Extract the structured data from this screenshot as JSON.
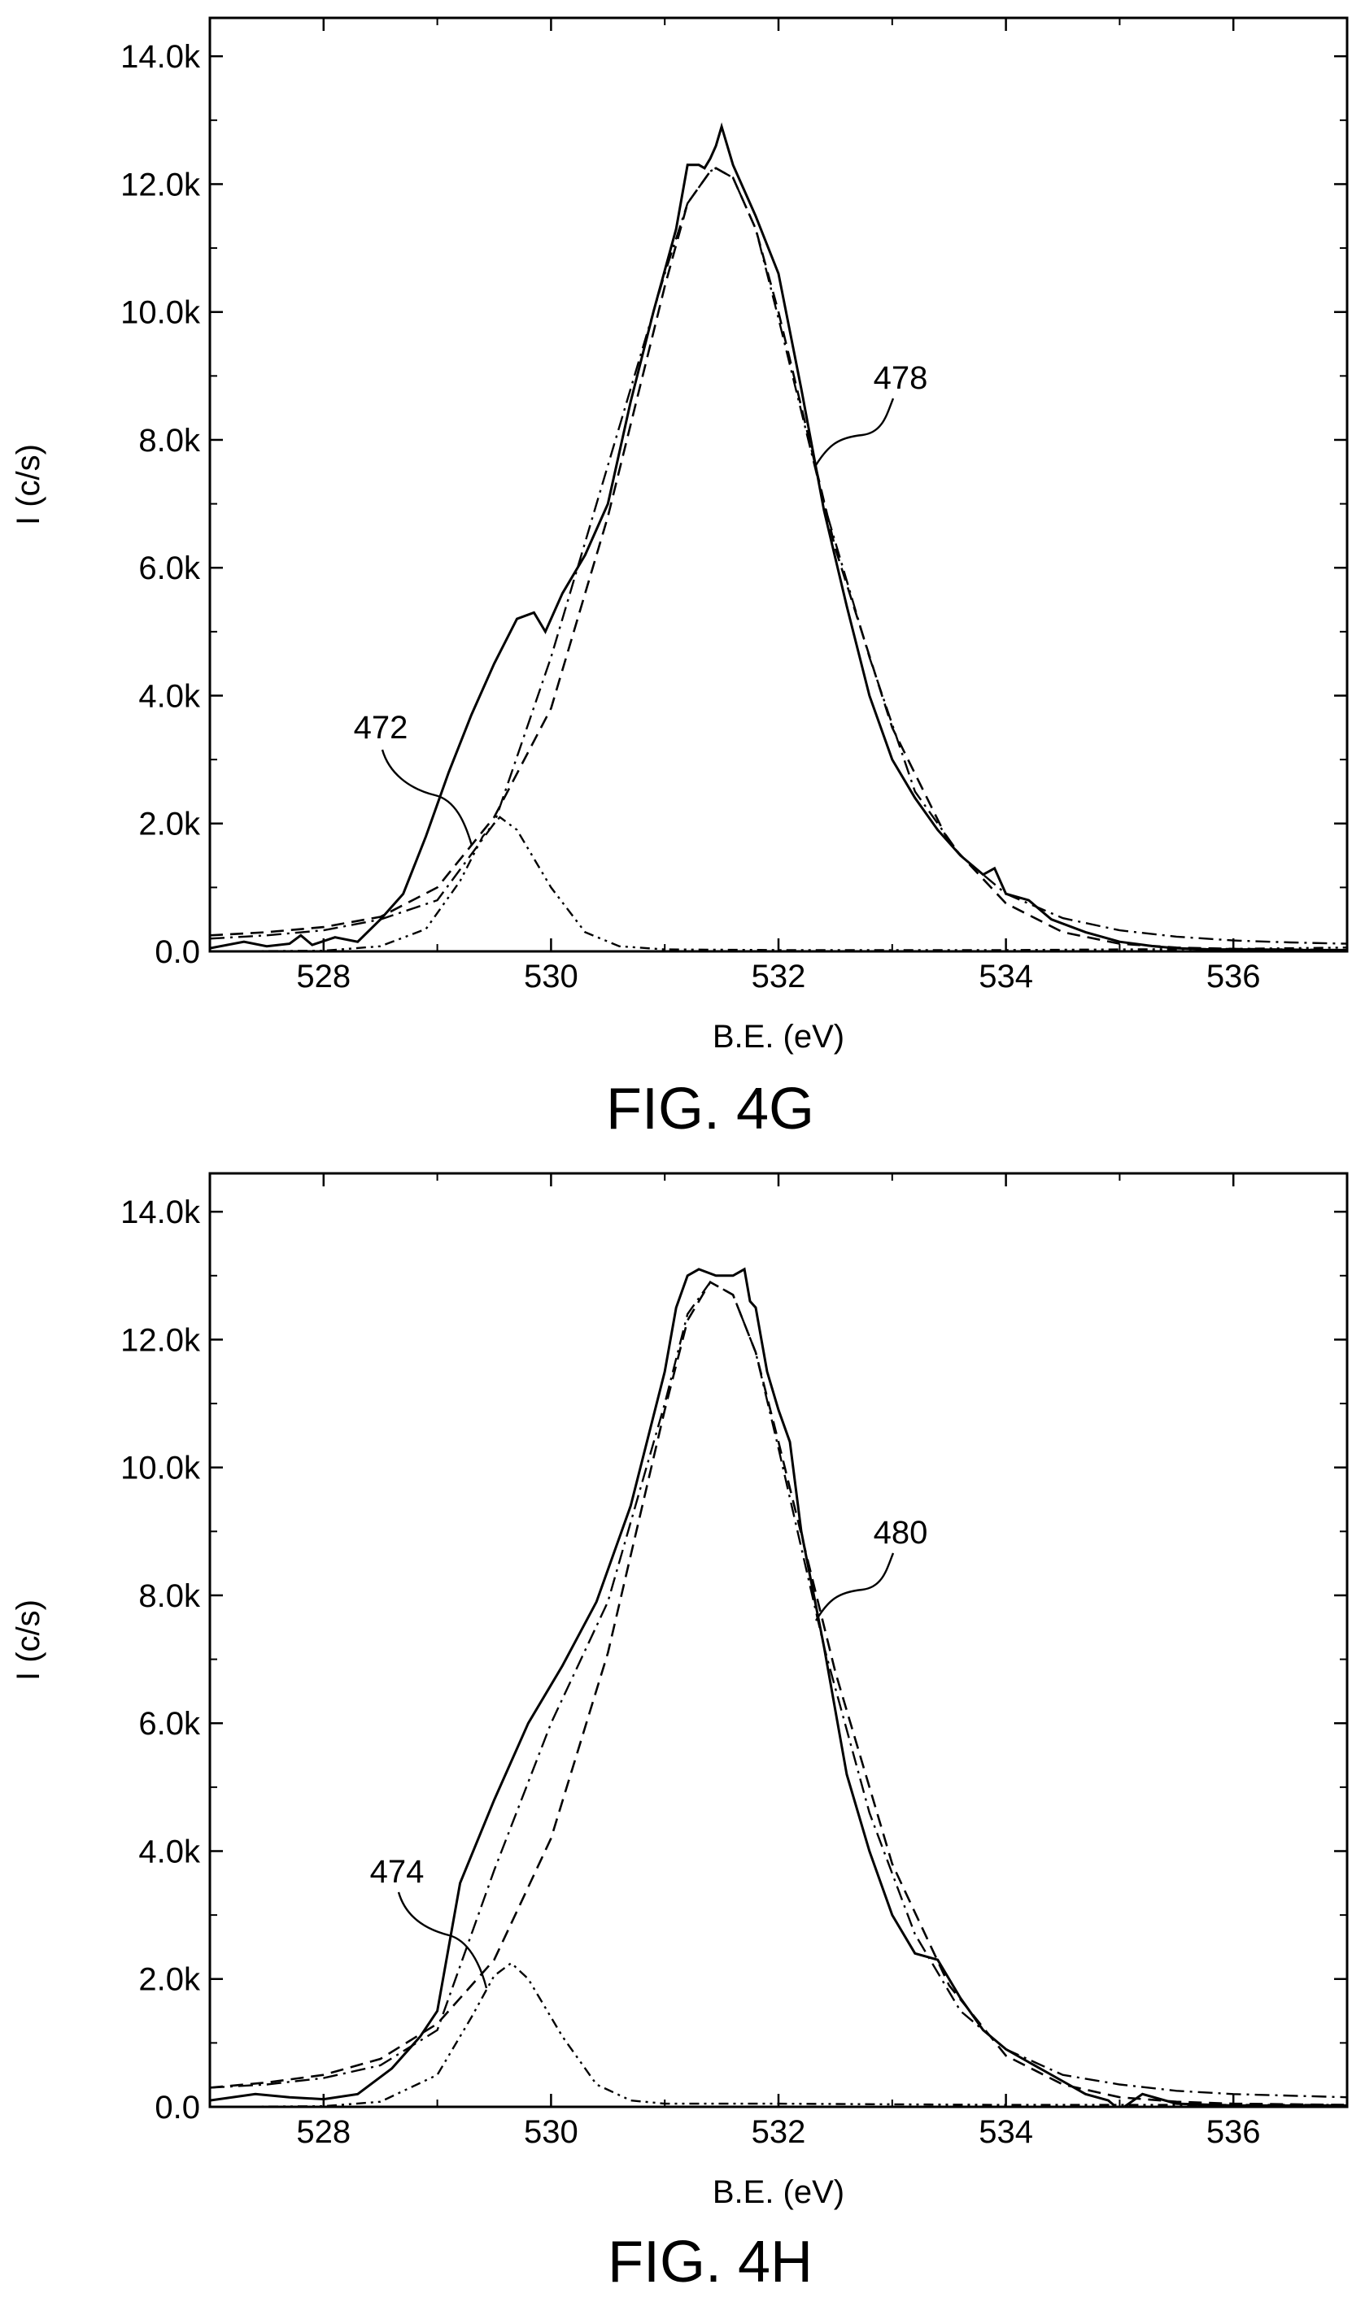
{
  "chart_data": [
    {
      "type": "line",
      "caption": "FIG. 4G",
      "xlabel": "B.E. (eV)",
      "ylabel": "I (c/s)",
      "xlim": [
        527,
        537
      ],
      "ylim": [
        0,
        14600
      ],
      "x_ticks": [
        528,
        530,
        532,
        534,
        536
      ],
      "y_ticks": [
        {
          "value": 0,
          "label": "0.0"
        },
        {
          "value": 2000,
          "label": "2.0k"
        },
        {
          "value": 4000,
          "label": "4.0k"
        },
        {
          "value": 6000,
          "label": "6.0k"
        },
        {
          "value": 8000,
          "label": "8.0k"
        },
        {
          "value": 10000,
          "label": "10.0k"
        },
        {
          "value": 12000,
          "label": "12.0k"
        },
        {
          "value": 14000,
          "label": "14.0k"
        }
      ],
      "grid": false,
      "series": [
        {
          "style": "solid",
          "x": [
            527.0,
            527.3,
            527.5,
            527.7,
            527.8,
            527.9,
            528.1,
            528.3,
            528.5,
            528.7,
            528.9,
            529.1,
            529.3,
            529.5,
            529.7,
            529.85,
            529.95,
            530.1,
            530.3,
            530.5,
            530.7,
            530.9,
            531.1,
            531.2,
            531.3,
            531.35,
            531.4,
            531.45,
            531.5,
            531.6,
            531.8,
            532.0,
            532.2,
            532.4,
            532.6,
            532.8,
            533.0,
            533.2,
            533.4,
            533.6,
            533.8,
            533.9,
            534.0,
            534.2,
            534.4,
            534.7,
            535.0,
            535.3,
            535.5,
            535.8,
            536.2,
            536.6,
            537.0
          ],
          "y": [
            50,
            150,
            80,
            120,
            250,
            100,
            220,
            150,
            500,
            900,
            1800,
            2800,
            3700,
            4500,
            5200,
            5300,
            5000,
            5600,
            6200,
            7000,
            8600,
            10000,
            11300,
            12300,
            12300,
            12250,
            12400,
            12600,
            12900,
            12300,
            11500,
            10600,
            8800,
            6900,
            5400,
            4000,
            3000,
            2400,
            1900,
            1500,
            1200,
            1300,
            900,
            800,
            500,
            300,
            150,
            80,
            50,
            30,
            30,
            20,
            20
          ]
        },
        {
          "style": "dash-dot",
          "x": [
            527.0,
            527.5,
            528.0,
            528.5,
            529.0,
            529.5,
            530.0,
            530.5,
            531.0,
            531.2,
            531.4,
            531.45,
            531.6,
            531.8,
            532.0,
            532.4,
            532.8,
            533.2,
            533.6,
            534.0,
            534.5,
            535.0,
            535.5,
            536.0,
            536.5,
            537.0
          ],
          "y": [
            200,
            250,
            330,
            500,
            800,
            2000,
            4600,
            7600,
            10600,
            11700,
            12200,
            12250,
            12100,
            11300,
            9900,
            7000,
            4600,
            2500,
            1500,
            900,
            520,
            330,
            230,
            170,
            140,
            120
          ]
        },
        {
          "style": "dash",
          "x": [
            527.0,
            527.5,
            528.0,
            528.5,
            529.0,
            529.5,
            530.0,
            530.5,
            531.0,
            531.2,
            531.4,
            531.45,
            531.6,
            531.8,
            532.0,
            532.5,
            533.0,
            533.5,
            534.0,
            534.5,
            535.0,
            535.5,
            536.0,
            537.0
          ],
          "y": [
            250,
            300,
            380,
            540,
            1000,
            2100,
            3800,
            6800,
            10400,
            11700,
            12200,
            12250,
            12100,
            11300,
            10000,
            6300,
            3500,
            1700,
            750,
            300,
            120,
            60,
            40,
            20
          ]
        },
        {
          "style": "dash-dot-dot",
          "x": [
            527.0,
            528.0,
            528.5,
            528.9,
            529.2,
            529.4,
            529.55,
            529.7,
            530.0,
            530.3,
            530.6,
            531.0,
            532.0,
            533.0,
            534.0,
            535.0,
            536.0,
            537.0
          ],
          "y": [
            0,
            10,
            80,
            350,
            1100,
            1800,
            2100,
            1900,
            1000,
            300,
            80,
            30,
            20,
            20,
            20,
            30,
            40,
            60
          ]
        }
      ],
      "annotations": [
        {
          "text": "478",
          "at": [
            532.5,
            7500
          ]
        },
        {
          "text": "472",
          "at": [
            529.3,
            1500
          ]
        }
      ]
    },
    {
      "type": "line",
      "caption": "FIG. 4H",
      "xlabel": "B.E. (eV)",
      "ylabel": "I (c/s)",
      "xlim": [
        527,
        537
      ],
      "ylim": [
        0,
        14600
      ],
      "x_ticks": [
        528,
        530,
        532,
        534,
        536
      ],
      "y_ticks": [
        {
          "value": 0,
          "label": "0.0"
        },
        {
          "value": 2000,
          "label": "2.0k"
        },
        {
          "value": 4000,
          "label": "4.0k"
        },
        {
          "value": 6000,
          "label": "6.0k"
        },
        {
          "value": 8000,
          "label": "8.0k"
        },
        {
          "value": 10000,
          "label": "10.0k"
        },
        {
          "value": 12000,
          "label": "12.0k"
        },
        {
          "value": 14000,
          "label": "14.0k"
        }
      ],
      "grid": false,
      "series": [
        {
          "style": "solid",
          "x": [
            527.0,
            527.4,
            527.7,
            528.0,
            528.3,
            528.6,
            528.85,
            529.0,
            529.2,
            529.5,
            529.8,
            530.1,
            530.4,
            530.7,
            531.0,
            531.1,
            531.2,
            531.3,
            531.45,
            531.6,
            531.7,
            531.75,
            531.8,
            531.9,
            532.0,
            532.1,
            532.2,
            532.4,
            532.6,
            532.8,
            533.0,
            533.2,
            533.4,
            533.6,
            533.8,
            534.0,
            534.2,
            534.5,
            534.7,
            534.9,
            535.0,
            535.2,
            535.5,
            536.0,
            537.0
          ],
          "y": [
            100,
            200,
            150,
            120,
            200,
            600,
            1100,
            1500,
            3500,
            4800,
            6000,
            6900,
            7900,
            9400,
            11500,
            12500,
            13000,
            13100,
            13000,
            13000,
            13100,
            12600,
            12500,
            11500,
            10900,
            10400,
            9000,
            7200,
            5200,
            4000,
            3000,
            2400,
            2300,
            1700,
            1200,
            900,
            700,
            400,
            200,
            100,
            -50,
            200,
            50,
            20,
            20
          ]
        },
        {
          "style": "dash-dot",
          "x": [
            527.0,
            527.5,
            528.0,
            528.5,
            529.0,
            529.5,
            530.0,
            530.5,
            531.0,
            531.2,
            531.4,
            531.6,
            531.8,
            532.0,
            532.4,
            532.8,
            533.2,
            533.6,
            534.0,
            534.5,
            535.0,
            535.5,
            536.0,
            537.0
          ],
          "y": [
            300,
            350,
            450,
            650,
            1200,
            3700,
            6000,
            7900,
            11000,
            12400,
            12900,
            12700,
            11800,
            10300,
            7200,
            4600,
            2700,
            1500,
            900,
            500,
            350,
            250,
            200,
            150
          ]
        },
        {
          "style": "dash",
          "x": [
            527.0,
            527.5,
            528.0,
            528.5,
            529.0,
            529.5,
            530.0,
            530.5,
            531.0,
            531.2,
            531.4,
            531.6,
            531.8,
            532.0,
            532.5,
            533.0,
            533.5,
            534.0,
            534.5,
            535.0,
            535.5,
            536.0,
            537.0
          ],
          "y": [
            300,
            380,
            500,
            750,
            1300,
            2300,
            4200,
            7100,
            10900,
            12300,
            12900,
            12700,
            11800,
            10400,
            6800,
            3800,
            1900,
            800,
            350,
            150,
            80,
            50,
            30
          ]
        },
        {
          "style": "dash-dot-dot",
          "x": [
            527.0,
            528.0,
            528.5,
            529.0,
            529.3,
            529.5,
            529.65,
            529.8,
            530.1,
            530.4,
            530.7,
            531.0,
            532.0,
            533.0,
            534.0,
            535.0,
            536.0,
            537.0
          ],
          "y": [
            0,
            10,
            80,
            500,
            1400,
            2050,
            2250,
            2000,
            1100,
            350,
            100,
            50,
            50,
            40,
            30,
            30,
            30,
            30
          ]
        }
      ],
      "annotations": [
        {
          "text": "480",
          "at": [
            532.5,
            7500
          ]
        },
        {
          "text": "474",
          "at": [
            529.4,
            1600
          ]
        }
      ]
    }
  ]
}
